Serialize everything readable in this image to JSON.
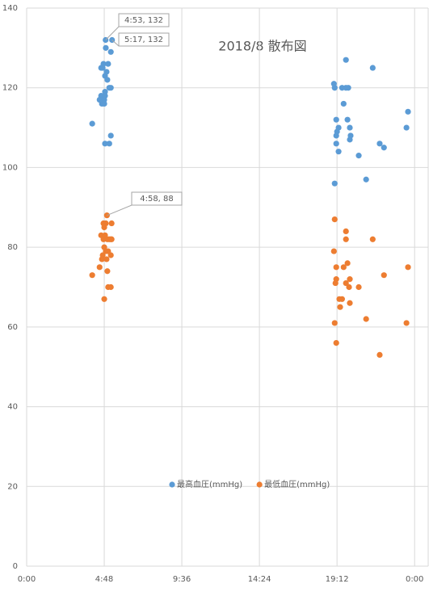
{
  "chart_data": {
    "type": "scatter",
    "title": "2018/8 散布図",
    "xlim": [
      0,
      1.035
    ],
    "ylim": [
      0,
      140
    ],
    "xticks": [
      {
        "value": 0,
        "label": "0:00"
      },
      {
        "value": 0.2,
        "label": "4:48"
      },
      {
        "value": 0.4,
        "label": "9:36"
      },
      {
        "value": 0.6,
        "label": "14:24"
      },
      {
        "value": 0.8,
        "label": "19:12"
      },
      {
        "value": 1.0,
        "label": "0:00"
      }
    ],
    "yticks": [
      0,
      20,
      40,
      60,
      80,
      100,
      120,
      140
    ],
    "grid": true,
    "legend": "bottom",
    "series": [
      {
        "name": "最高血圧(mmHg)",
        "color": "#5b9bd5",
        "x": [
          0.169,
          0.2035,
          0.2201,
          0.204,
          0.217,
          0.198,
          0.21,
          0.196,
          0.206,
          0.202,
          0.208,
          0.213,
          0.217,
          0.192,
          0.202,
          0.188,
          0.2,
          0.194,
          0.2,
          0.217,
          0.202,
          0.213,
          0.192,
          0.202,
          0.792,
          0.794,
          0.813,
          0.823,
          0.829,
          0.823,
          0.892,
          0.798,
          0.827,
          0.817,
          0.983,
          0.804,
          0.833,
          0.8,
          0.798,
          0.835,
          0.833,
          0.798,
          0.804,
          0.856,
          0.91,
          0.921,
          0.979,
          0.875,
          0.794
        ],
        "values": [
          111,
          132,
          132,
          130,
          129,
          126,
          126,
          125,
          124,
          123,
          122,
          120,
          120,
          118,
          118,
          117,
          117,
          116,
          116,
          108,
          106,
          106,
          125,
          119,
          121,
          120,
          120,
          127,
          120,
          120,
          125,
          112,
          112,
          116,
          114,
          110,
          110,
          109,
          108,
          108,
          107,
          106,
          104,
          103,
          106,
          105,
          110,
          97,
          96
        ]
      },
      {
        "name": "最低血圧(mmHg)",
        "color": "#ed7d31",
        "x": [
          0.169,
          0.188,
          0.192,
          0.2069,
          0.198,
          0.204,
          0.219,
          0.2,
          0.202,
          0.198,
          0.208,
          0.219,
          0.213,
          0.2,
          0.204,
          0.21,
          0.196,
          0.217,
          0.194,
          0.206,
          0.208,
          0.21,
          0.217,
          0.2,
          0.217,
          0.794,
          0.823,
          0.823,
          0.892,
          0.792,
          0.827,
          0.798,
          0.817,
          0.983,
          0.921,
          0.798,
          0.833,
          0.796,
          0.823,
          0.831,
          0.856,
          0.806,
          0.813,
          0.833,
          0.808,
          0.875,
          0.794,
          0.979,
          0.798,
          0.91
        ],
        "values": [
          73,
          75,
          83,
          88,
          86,
          86,
          86,
          85,
          83,
          82,
          82,
          82,
          82,
          80,
          79,
          79,
          78,
          78,
          77,
          77,
          74,
          70,
          70,
          67,
          82,
          87,
          84,
          82,
          82,
          79,
          76,
          75,
          75,
          75,
          73,
          72,
          72,
          71,
          71,
          70,
          70,
          67,
          67,
          66,
          65,
          62,
          61,
          61,
          56,
          53
        ]
      }
    ],
    "annotations": [
      {
        "text": "4:53, 132",
        "x": 0.2035,
        "y": 132
      },
      {
        "text": "5:17, 132",
        "x": 0.2201,
        "y": 132
      },
      {
        "text": "4:58, 88",
        "x": 0.2069,
        "y": 88
      }
    ]
  }
}
